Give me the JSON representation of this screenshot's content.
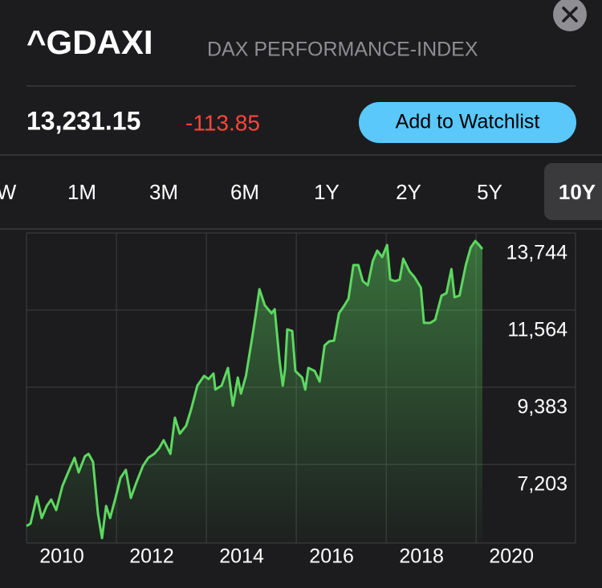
{
  "header": {
    "symbol": "^GDAXI",
    "name": "DAX PERFORMANCE-INDEX"
  },
  "quote": {
    "price": "13,231.15",
    "change": "-113.85"
  },
  "button": "Add to Watchlist",
  "tabs": [
    "W",
    "1M",
    "3M",
    "6M",
    "1Y",
    "2Y",
    "5Y",
    "10Y"
  ],
  "selected_tab": 7,
  "chart_data": {
    "type": "line",
    "color": "#5cd860",
    "x": [
      2010.0,
      2010.09,
      2010.23,
      2010.34,
      2010.45,
      2010.55,
      2010.66,
      2010.8,
      2010.95,
      2011.07,
      2011.16,
      2011.3,
      2011.38,
      2011.48,
      2011.59,
      2011.68,
      2011.77,
      2011.86,
      2011.98,
      2012.09,
      2012.21,
      2012.32,
      2012.45,
      2012.59,
      2012.71,
      2012.84,
      2012.95,
      2013.05,
      2013.2,
      2013.3,
      2013.41,
      2013.55,
      2013.66,
      2013.8,
      2013.95,
      2014.05,
      2014.16,
      2014.2,
      2014.34,
      2014.48,
      2014.59,
      2014.7,
      2014.77,
      2014.88,
      2015.02,
      2015.09,
      2015.18,
      2015.3,
      2015.45,
      2015.52,
      2015.63,
      2015.7,
      2015.75,
      2015.8,
      2015.91,
      2015.98,
      2016.13,
      2016.2,
      2016.27,
      2016.41,
      2016.52,
      2016.63,
      2016.73,
      2016.84,
      2016.95,
      2017.05,
      2017.16,
      2017.27,
      2017.38,
      2017.48,
      2017.59,
      2017.7,
      2017.8,
      2017.91,
      2018.02,
      2018.09,
      2018.2,
      2018.3,
      2018.38,
      2018.52,
      2018.63,
      2018.77,
      2018.84,
      2018.98,
      2019.09,
      2019.23,
      2019.34,
      2019.45,
      2019.52,
      2019.63,
      2019.77,
      2019.88,
      2019.98,
      2020.05,
      2020.14
    ],
    "values": [
      5458,
      5527,
      6298,
      5685,
      6026,
      6208,
      5912,
      6593,
      7047,
      7388,
      6979,
      7433,
      7501,
      7274,
      5799,
      5118,
      6026,
      5685,
      6253,
      6820,
      7047,
      6253,
      6707,
      7161,
      7388,
      7501,
      7660,
      7887,
      7501,
      8523,
      8069,
      8296,
      8750,
      9431,
      9703,
      9613,
      9771,
      9317,
      9431,
      9930,
      8863,
      9658,
      9204,
      9703,
      10793,
      11360,
      12155,
      11701,
      11474,
      11587,
      10112,
      9431,
      9885,
      11020,
      10975,
      9840,
      9658,
      9317,
      9930,
      9840,
      9544,
      10566,
      10679,
      10702,
      11474,
      11656,
      11883,
      12836,
      12836,
      12382,
      12268,
      12949,
      13245,
      13063,
      13403,
      12427,
      12382,
      12427,
      13018,
      12654,
      12495,
      12200,
      11202,
      11202,
      11292,
      11973,
      12041,
      12722,
      11928,
      11973,
      12836,
      13335,
      13517,
      13426,
      13290
    ],
    "xlim": [
      2010,
      2022.21
    ],
    "xticks": [
      2010,
      2012,
      2014,
      2016,
      2018,
      2020
    ],
    "ylim": [
      4980,
      13744
    ],
    "yticks": [
      {
        "value": 13744,
        "label": "13,744"
      },
      {
        "value": 11564,
        "label": "11,564"
      },
      {
        "value": 9383,
        "label": "9,383"
      },
      {
        "value": 7203,
        "label": "7,203"
      }
    ],
    "grid": true
  }
}
